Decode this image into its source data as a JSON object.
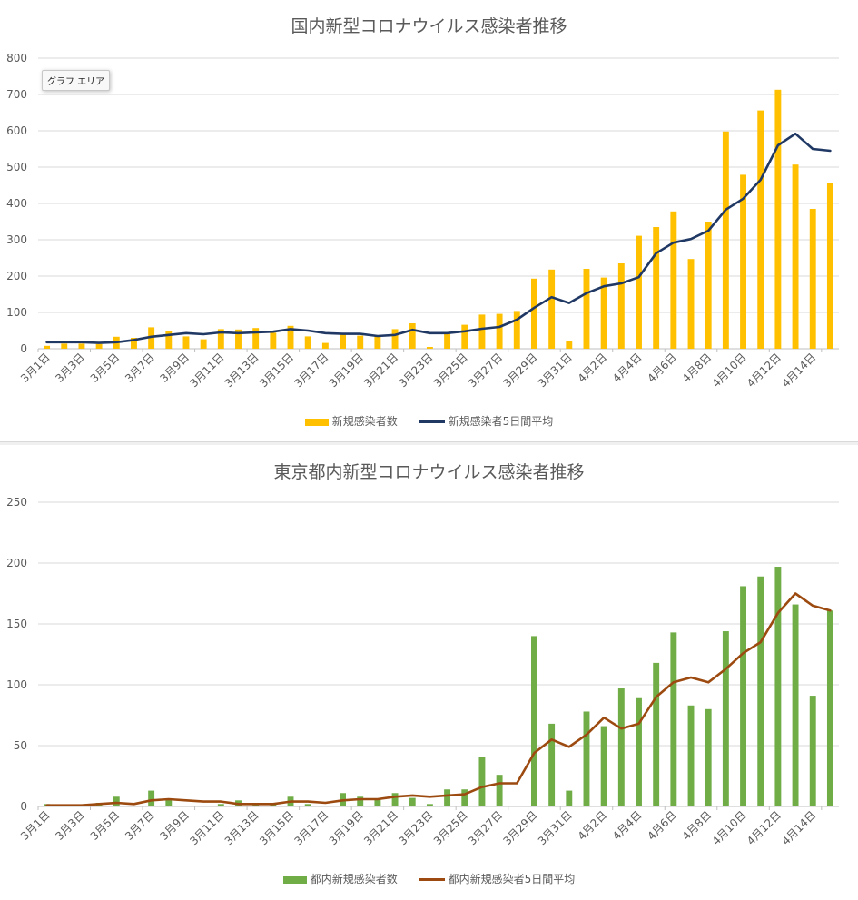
{
  "tooltip": "グラフ エリア",
  "x_labels": [
    "3月1日",
    "3月3日",
    "3月5日",
    "3月7日",
    "3月9日",
    "3月11日",
    "3月13日",
    "3月15日",
    "3月17日",
    "3月19日",
    "3月21日",
    "3月23日",
    "3月25日",
    "3月27日",
    "3月29日",
    "3月31日",
    "4月2日",
    "4月4日",
    "4月6日",
    "4月8日",
    "4月10日",
    "4月12日",
    "4月14日"
  ],
  "chart_data": [
    {
      "type": "bar",
      "title": "国内新型コロナウイルス感染者推移",
      "ylim": [
        0,
        800
      ],
      "yticks": [
        0,
        100,
        200,
        300,
        400,
        500,
        600,
        700,
        800
      ],
      "bar_color": "#FFC000",
      "line_color": "#203864",
      "series": [
        {
          "name": "新規感染者数",
          "type": "bar",
          "values": [
            8,
            14,
            14,
            13,
            33,
            30,
            59,
            49,
            34,
            26,
            54,
            53,
            57,
            44,
            63,
            34,
            16,
            40,
            36,
            35,
            54,
            70,
            5,
            44,
            66,
            94,
            96,
            104,
            193,
            218,
            20,
            220,
            196,
            235,
            311,
            335,
            378,
            247,
            350,
            598,
            479,
            656,
            713,
            507,
            385,
            455
          ]
        },
        {
          "name": "新規感染者5日間平均",
          "type": "line",
          "values": [
            18,
            18,
            18,
            16,
            18,
            24,
            33,
            38,
            43,
            40,
            45,
            43,
            45,
            47,
            54,
            50,
            43,
            41,
            41,
            35,
            38,
            52,
            43,
            43,
            48,
            55,
            60,
            80,
            113,
            142,
            126,
            153,
            172,
            180,
            197,
            263,
            292,
            302,
            325,
            383,
            413,
            465,
            560,
            592,
            550,
            545
          ]
        }
      ]
    },
    {
      "type": "bar",
      "title": "東京都内新型コロナウイルス感染者推移",
      "ylim": [
        0,
        250
      ],
      "yticks": [
        0,
        50,
        100,
        150,
        200,
        250
      ],
      "bar_color": "#70AD47",
      "line_color": "#9C4A0F",
      "series": [
        {
          "name": "都内新規感染者数",
          "type": "bar",
          "values": [
            2,
            0,
            0,
            3,
            8,
            0,
            13,
            6,
            0,
            0,
            2,
            5,
            2,
            3,
            8,
            2,
            0,
            11,
            8,
            6,
            11,
            7,
            2,
            14,
            14,
            41,
            26,
            0,
            140,
            68,
            13,
            78,
            66,
            97,
            89,
            118,
            143,
            83,
            80,
            144,
            181,
            189,
            197,
            166,
            91,
            161
          ]
        },
        {
          "name": "都内新規感染者5日間平均",
          "type": "line",
          "values": [
            1,
            1,
            1,
            2,
            3,
            2,
            5,
            6,
            5,
            4,
            4,
            2,
            2,
            2,
            4,
            4,
            3,
            5,
            6,
            6,
            8,
            9,
            8,
            9,
            10,
            16,
            19,
            19,
            44,
            55,
            49,
            59,
            73,
            64,
            68,
            90,
            102,
            106,
            102,
            113,
            126,
            135,
            159,
            175,
            165,
            161
          ]
        }
      ]
    }
  ]
}
